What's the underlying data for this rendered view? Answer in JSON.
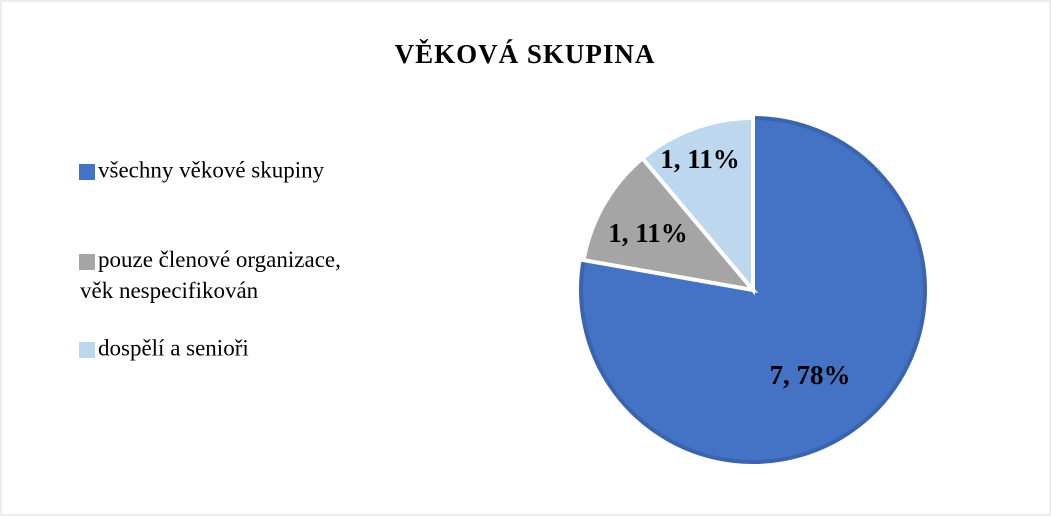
{
  "chart_data": {
    "type": "pie",
    "title": "VĚKOVÁ SKUPINA",
    "categories": [
      "všechny věkové skupiny",
      "pouze členové organizace, věk nespecifikován",
      "dospělí a senioři"
    ],
    "values": [
      7,
      1,
      1
    ],
    "value_labels": [
      "7, 78%",
      "1, 11%",
      "1, 11%"
    ],
    "colors": [
      "#4472c4",
      "#a5a5a5",
      "#bdd7ee"
    ],
    "legend": "left"
  }
}
